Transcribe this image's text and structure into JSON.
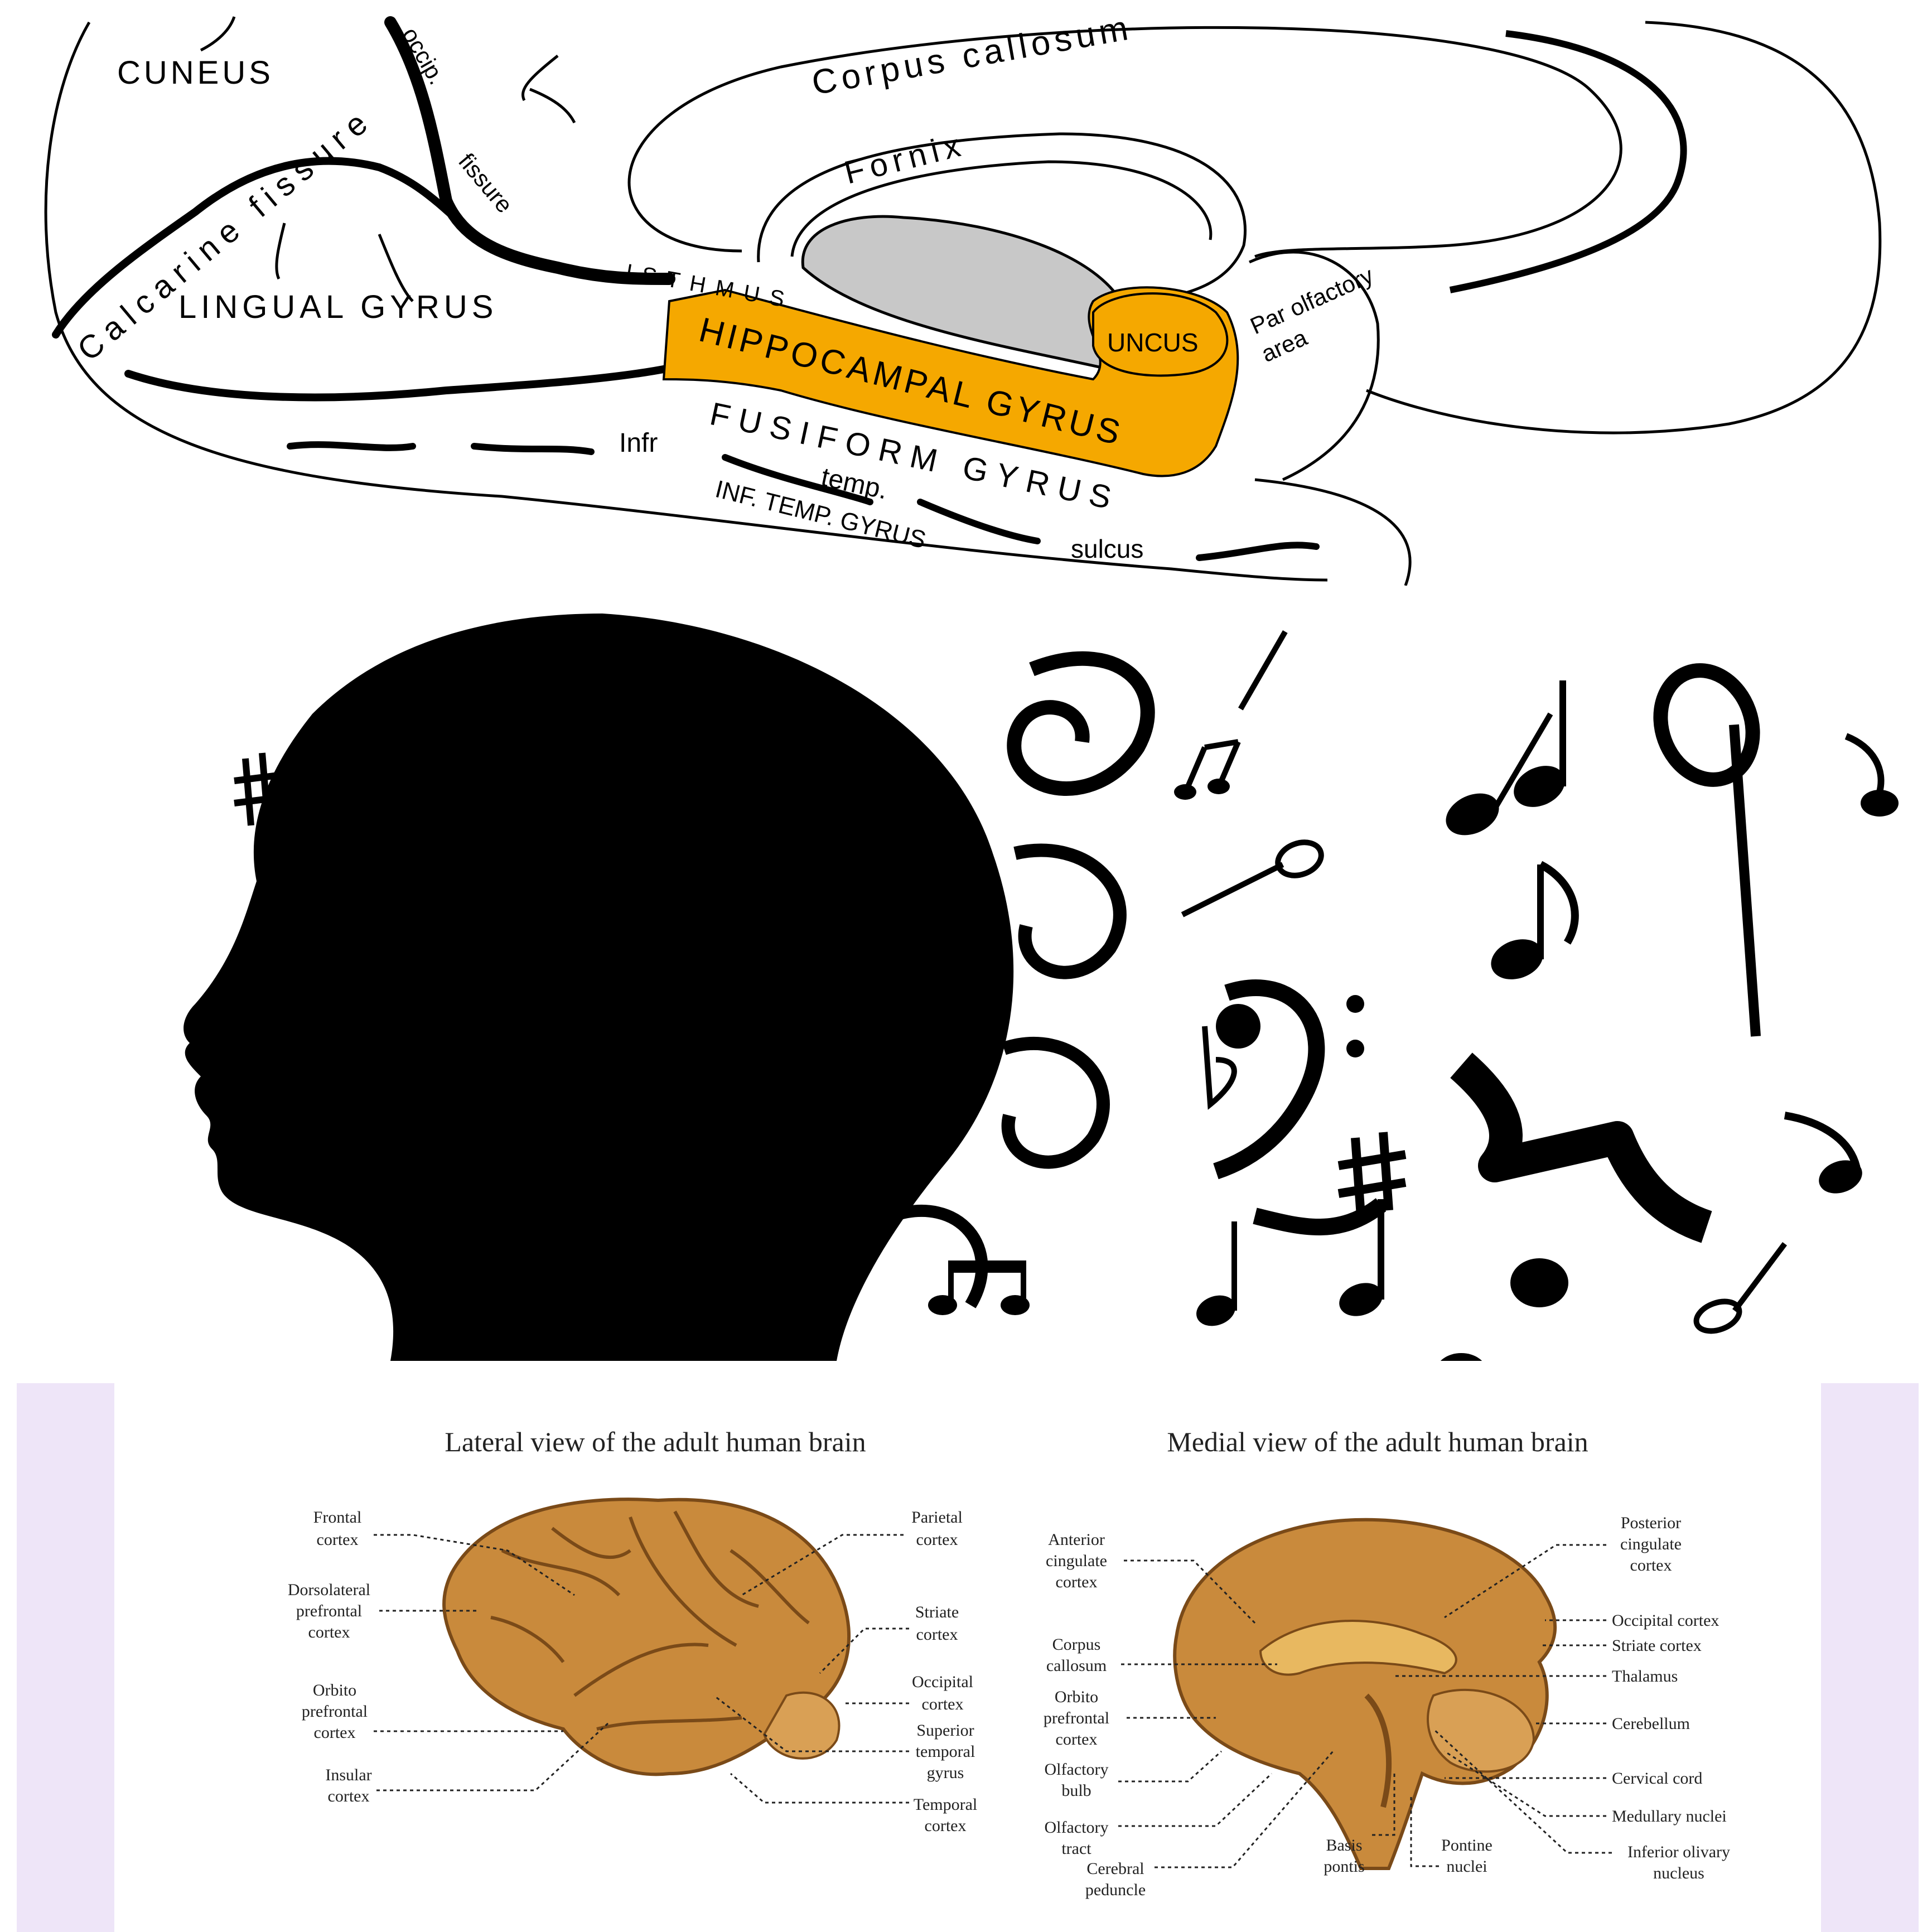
{
  "colors": {
    "hippocampal_fill": "#F5A800",
    "ventricle_fill": "#C8C8C8",
    "ink": "#000000",
    "lilac": "#EEE5F8",
    "brain_tan": "#C98A3C",
    "brain_dark": "#7A4A18"
  },
  "top_diagram": {
    "labels": {
      "cuneus": "CUNEUS",
      "occip": "occip.",
      "corpus_callosum": "Corpus callosum",
      "fornix": "Fornix",
      "calcarine_fissure": "Calcarine fissure",
      "fissure": "fissure",
      "isthmus": "ISTHMUS",
      "lingual_gyrus": "LINGUAL GYRUS",
      "hippocampal_gyrus": "HIPPOCAMPAL GYRUS",
      "uncus": "UNCUS",
      "parolfactory_area_1": "Par olfactory",
      "parolfactory_area_2": "area",
      "fusiform_gyrus": "FUSIFORM GYRUS",
      "infr": "Infr",
      "temp": "temp.",
      "inf_temp_gyrus": "INF. TEMP. GYRUS",
      "sulcus": "sulcus"
    }
  },
  "bottom_figure": {
    "lateral_title": "Lateral view of the adult human brain",
    "medial_title": "Medial view of the adult human brain",
    "lateral_labels": {
      "frontal_cortex": [
        "Frontal",
        "cortex"
      ],
      "dorsolateral_prefrontal_cortex": [
        "Dorsolateral",
        "prefrontal",
        "cortex"
      ],
      "orbito_prefrontal_cortex": [
        "Orbito",
        "prefrontal",
        "cortex"
      ],
      "insular_cortex": [
        "Insular",
        "cortex"
      ],
      "parietal_cortex": [
        "Parietal",
        "cortex"
      ],
      "striate_cortex": [
        "Striate",
        "cortex"
      ],
      "occipital_cortex": [
        "Occipital",
        "cortex"
      ],
      "superior_temporal_gyrus": [
        "Superior",
        "temporal",
        "gyrus"
      ],
      "temporal_cortex": [
        "Temporal",
        "cortex"
      ]
    },
    "medial_labels": {
      "anterior_cingulate_cortex": [
        "Anterior",
        "cingulate",
        "cortex"
      ],
      "corpus_callosum": [
        "Corpus",
        "callosum"
      ],
      "orbito_prefrontal_cortex": [
        "Orbito",
        "prefrontal",
        "cortex"
      ],
      "olfactory_bulb": [
        "Olfactory",
        "bulb"
      ],
      "olfactory_tract": [
        "Olfactory",
        "tract"
      ],
      "cerebral_peduncle": [
        "Cerebral",
        "peduncle"
      ],
      "basis_pontis": [
        "Basis",
        "pontis"
      ],
      "pontine_nuclei": [
        "Pontine",
        "nuclei"
      ],
      "posterior_cingulate_cortex": [
        "Posterior",
        "cingulate",
        "cortex"
      ],
      "occipital_cortex": "Occipital cortex",
      "striate_cortex": "Striate cortex",
      "thalamus": "Thalamus",
      "cerebellum": "Cerebellum",
      "cervical_cord": "Cervical cord",
      "medullary_nuclei": "Medullary nuclei",
      "inferior_olivary_nucleus": [
        "Inferior olivary",
        "nucleus"
      ]
    }
  }
}
